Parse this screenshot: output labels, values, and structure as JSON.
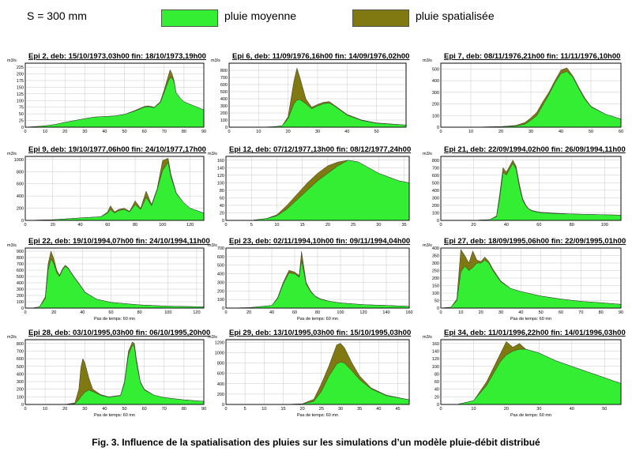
{
  "header": {
    "surface": "S = 300 mm",
    "legend": [
      {
        "label": "pluie moyenne",
        "color": "#33ee33"
      },
      {
        "label": "pluie spatialisée",
        "color": "#807810"
      }
    ]
  },
  "caption": "Fig. 3. Influence de la spatialisation des pluies sur les simulations d’un modèle pluie-débit distribué",
  "colors": {
    "moyenne": "#33ee33",
    "spatialisee": "#807810",
    "grid": "#c8c8c8"
  },
  "chart_data": [
    {
      "type": "area",
      "title": "Epi 2, deb: 15/10/1973,03h00 fin: 18/10/1973,19h00",
      "ylabel": "m3/s",
      "xlabel": "",
      "xlim": [
        0,
        90
      ],
      "ylim": [
        0,
        240
      ],
      "xticks": [
        0,
        10,
        20,
        30,
        40,
        50,
        60,
        70,
        80,
        90
      ],
      "yticks": [
        0,
        25,
        50,
        75,
        100,
        125,
        150,
        175,
        200,
        225
      ],
      "x": [
        0,
        5,
        10,
        15,
        20,
        25,
        30,
        35,
        40,
        45,
        50,
        55,
        60,
        62,
        65,
        68,
        70,
        72,
        73,
        74,
        75,
        76,
        78,
        80,
        85,
        90
      ],
      "series": [
        {
          "name": "pluie spatialisée",
          "values": [
            0,
            2,
            5,
            10,
            18,
            25,
            32,
            38,
            40,
            42,
            48,
            62,
            78,
            80,
            75,
            95,
            140,
            190,
            215,
            200,
            175,
            130,
            110,
            95,
            80,
            65
          ]
        },
        {
          "name": "pluie moyenne",
          "values": [
            0,
            2,
            5,
            10,
            18,
            25,
            32,
            38,
            40,
            42,
            48,
            60,
            75,
            77,
            73,
            92,
            130,
            170,
            185,
            185,
            170,
            130,
            110,
            95,
            80,
            65
          ]
        }
      ]
    },
    {
      "type": "area",
      "title": "Epi 6, deb: 11/09/1976,16h00 fin: 14/09/1976,02h00",
      "ylabel": "m3/s",
      "xlabel": "",
      "xlim": [
        0,
        60
      ],
      "ylim": [
        0,
        900
      ],
      "xticks": [
        0,
        10,
        20,
        30,
        40,
        50
      ],
      "yticks": [
        0,
        100,
        200,
        300,
        400,
        500,
        600,
        700,
        800
      ],
      "x": [
        0,
        10,
        15,
        18,
        20,
        22,
        23,
        24,
        26,
        28,
        30,
        32,
        34,
        36,
        40,
        45,
        50,
        60
      ],
      "series": [
        {
          "name": "pluie spatialisée",
          "values": [
            0,
            0,
            5,
            20,
            150,
            650,
            830,
            700,
            400,
            280,
            320,
            350,
            360,
            300,
            180,
            100,
            60,
            30
          ]
        },
        {
          "name": "pluie moyenne",
          "values": [
            0,
            0,
            5,
            20,
            120,
            330,
            380,
            390,
            330,
            260,
            300,
            330,
            340,
            290,
            170,
            95,
            55,
            30
          ]
        }
      ]
    },
    {
      "type": "area",
      "title": "Epi 7, deb: 08/11/1976,21h00 fin: 11/11/1976,10h00",
      "ylabel": "m3/s",
      "xlabel": "",
      "xlim": [
        0,
        60
      ],
      "ylim": [
        0,
        550
      ],
      "xticks": [
        0,
        10,
        20,
        30,
        40,
        50,
        60
      ],
      "yticks": [
        0,
        100,
        200,
        300,
        400,
        500
      ],
      "x": [
        0,
        10,
        20,
        25,
        28,
        30,
        32,
        34,
        36,
        38,
        40,
        42,
        44,
        46,
        48,
        50,
        55,
        60
      ],
      "series": [
        {
          "name": "pluie spatialisée",
          "values": [
            0,
            0,
            5,
            15,
            40,
            80,
            130,
            220,
            300,
            400,
            490,
            510,
            440,
            340,
            250,
            180,
            110,
            70
          ]
        },
        {
          "name": "pluie moyenne",
          "values": [
            0,
            0,
            5,
            10,
            25,
            60,
            100,
            190,
            280,
            380,
            460,
            480,
            430,
            330,
            240,
            175,
            110,
            70
          ]
        }
      ]
    },
    {
      "type": "area",
      "title": "Epi 9, deb: 19/10/1977,06h00 fin: 24/10/1977,17h00",
      "ylabel": "m3/s",
      "xlabel": "",
      "xlim": [
        0,
        130
      ],
      "ylim": [
        0,
        1050
      ],
      "xticks": [
        0,
        20,
        40,
        60,
        80,
        100,
        120
      ],
      "yticks": [
        0,
        200,
        400,
        600,
        800,
        1000
      ],
      "x": [
        0,
        20,
        40,
        55,
        60,
        62,
        65,
        68,
        72,
        76,
        80,
        84,
        88,
        92,
        96,
        100,
        104,
        106,
        110,
        115,
        120,
        130
      ],
      "series": [
        {
          "name": "pluie spatialisée",
          "values": [
            0,
            10,
            40,
            60,
            140,
            240,
            140,
            180,
            200,
            150,
            320,
            200,
            480,
            260,
            520,
            980,
            1020,
            760,
            450,
            300,
            200,
            120
          ]
        },
        {
          "name": "pluie moyenne",
          "values": [
            0,
            10,
            40,
            60,
            120,
            180,
            120,
            160,
            180,
            140,
            260,
            180,
            380,
            240,
            500,
            820,
            950,
            720,
            440,
            300,
            200,
            120
          ]
        }
      ]
    },
    {
      "type": "area",
      "title": "Epi 12, deb: 07/12/1977,13h00 fin: 08/12/1977,24h00",
      "ylabel": "m3/s",
      "xlabel": "",
      "xlim": [
        0,
        36
      ],
      "ylim": [
        0,
        170
      ],
      "xticks": [
        0,
        5,
        10,
        15,
        20,
        25,
        30,
        35
      ],
      "yticks": [
        0,
        20,
        40,
        60,
        80,
        100,
        120,
        140,
        160
      ],
      "x": [
        0,
        5,
        8,
        10,
        12,
        14,
        16,
        18,
        20,
        22,
        24,
        26,
        28,
        30,
        32,
        34,
        36
      ],
      "series": [
        {
          "name": "pluie spatialisée",
          "values": [
            0,
            0,
            5,
            15,
            40,
            70,
            100,
            125,
            145,
            155,
            160,
            155,
            140,
            125,
            115,
            105,
            100
          ]
        },
        {
          "name": "pluie moyenne",
          "values": [
            0,
            0,
            5,
            12,
            30,
            55,
            80,
            105,
            125,
            145,
            160,
            155,
            140,
            125,
            115,
            105,
            100
          ]
        }
      ]
    },
    {
      "type": "area",
      "title": "Epi 21, deb: 22/09/1994,02h00 fin: 26/09/1994,11h00",
      "ylabel": "m3/s",
      "xlabel": "",
      "xlim": [
        0,
        110
      ],
      "ylim": [
        0,
        850
      ],
      "xticks": [
        0,
        20,
        40,
        60,
        80,
        100
      ],
      "yticks": [
        0,
        100,
        200,
        300,
        400,
        500,
        600,
        700,
        800
      ],
      "x": [
        0,
        20,
        30,
        34,
        36,
        38,
        40,
        42,
        44,
        46,
        48,
        50,
        52,
        54,
        56,
        60,
        70,
        80,
        90,
        100,
        110
      ],
      "series": [
        {
          "name": "pluie spatialisée",
          "values": [
            0,
            0,
            10,
            60,
            350,
            700,
            640,
            720,
            800,
            720,
            480,
            290,
            200,
            150,
            130,
            110,
            95,
            85,
            80,
            75,
            70
          ]
        },
        {
          "name": "pluie moyenne",
          "values": [
            0,
            0,
            10,
            50,
            300,
            640,
            600,
            680,
            760,
            680,
            440,
            270,
            190,
            145,
            125,
            105,
            90,
            85,
            80,
            75,
            70
          ]
        }
      ]
    },
    {
      "type": "area",
      "title": "Epi 22, deb: 19/10/1994,07h00 fin: 24/10/1994,11h00",
      "ylabel": "m3/s",
      "xlabel": "Pas de temps: 60 mn",
      "xlim": [
        0,
        125
      ],
      "ylim": [
        0,
        950
      ],
      "xticks": [
        0,
        20,
        40,
        60,
        80,
        100,
        120
      ],
      "yticks": [
        0,
        100,
        200,
        300,
        400,
        500,
        600,
        700,
        800,
        900
      ],
      "x": [
        0,
        5,
        10,
        14,
        16,
        18,
        20,
        22,
        24,
        26,
        28,
        30,
        34,
        38,
        42,
        50,
        60,
        80,
        100,
        125
      ],
      "series": [
        {
          "name": "pluie spatialisée",
          "values": [
            0,
            0,
            20,
            180,
            700,
            900,
            780,
            600,
            520,
            620,
            680,
            640,
            500,
            380,
            250,
            140,
            90,
            50,
            30,
            20
          ]
        },
        {
          "name": "pluie moyenne",
          "values": [
            0,
            0,
            20,
            150,
            600,
            780,
            700,
            560,
            500,
            600,
            660,
            630,
            490,
            370,
            245,
            140,
            90,
            50,
            30,
            20
          ]
        }
      ]
    },
    {
      "type": "area",
      "title": "Epi 23, deb: 02/11/1994,10h00 fin: 09/11/1994,04h00",
      "ylabel": "m3/s",
      "xlabel": "Pas de temps: 60 mn",
      "xlim": [
        0,
        160
      ],
      "ylim": [
        0,
        700
      ],
      "xticks": [
        0,
        20,
        40,
        60,
        80,
        100,
        120,
        140,
        160
      ],
      "yticks": [
        0,
        100,
        200,
        300,
        400,
        500,
        600,
        700
      ],
      "x": [
        0,
        20,
        40,
        45,
        50,
        55,
        60,
        64,
        66,
        68,
        70,
        74,
        78,
        82,
        90,
        100,
        120,
        140,
        160
      ],
      "series": [
        {
          "name": "pluie spatialisée",
          "values": [
            0,
            5,
            30,
            120,
            300,
            440,
            420,
            380,
            660,
            480,
            300,
            200,
            140,
            110,
            80,
            60,
            40,
            30,
            20
          ]
        },
        {
          "name": "pluie moyenne",
          "values": [
            0,
            5,
            30,
            110,
            280,
            410,
            400,
            360,
            560,
            420,
            280,
            190,
            135,
            105,
            80,
            60,
            40,
            30,
            20
          ]
        }
      ]
    },
    {
      "type": "area",
      "title": "Epi 27, deb: 18/09/1995,06h00 fin: 22/09/1995,01h00",
      "ylabel": "m3/s",
      "xlabel": "Pas de temps: 60 mn",
      "xlim": [
        0,
        90
      ],
      "ylim": [
        0,
        400
      ],
      "xticks": [
        0,
        10,
        20,
        30,
        40,
        50,
        60,
        70,
        80,
        90
      ],
      "yticks": [
        0,
        50,
        100,
        150,
        200,
        250,
        300,
        350,
        400
      ],
      "x": [
        0,
        5,
        8,
        10,
        12,
        14,
        16,
        18,
        20,
        22,
        24,
        26,
        30,
        35,
        40,
        50,
        60,
        70,
        80,
        90
      ],
      "series": [
        {
          "name": "pluie spatialisée",
          "values": [
            0,
            5,
            60,
            390,
            350,
            300,
            380,
            320,
            310,
            340,
            310,
            260,
            180,
            130,
            110,
            80,
            60,
            45,
            35,
            25
          ]
        },
        {
          "name": "pluie moyenne",
          "values": [
            0,
            5,
            50,
            240,
            280,
            250,
            270,
            300,
            300,
            320,
            300,
            250,
            175,
            130,
            110,
            80,
            60,
            45,
            35,
            25
          ]
        }
      ]
    },
    {
      "type": "area",
      "title": "Epi 28, deb: 03/10/1995,03h00 fin: 06/10/1995,20h00",
      "ylabel": "m3/s",
      "xlabel": "Pas de temps: 60 mn",
      "xlim": [
        0,
        90
      ],
      "ylim": [
        0,
        850
      ],
      "xticks": [
        0,
        10,
        20,
        30,
        40,
        50,
        60,
        70,
        80,
        90
      ],
      "yticks": [
        0,
        100,
        200,
        300,
        400,
        500,
        600,
        700,
        800
      ],
      "x": [
        0,
        20,
        25,
        27,
        28,
        29,
        30,
        32,
        34,
        38,
        42,
        48,
        50,
        52,
        54,
        55,
        56,
        58,
        60,
        65,
        70,
        80,
        90
      ],
      "series": [
        {
          "name": "pluie spatialisée",
          "values": [
            0,
            0,
            20,
            200,
            480,
            600,
            550,
            350,
            200,
            130,
            100,
            120,
            300,
            700,
            820,
            800,
            600,
            300,
            200,
            120,
            90,
            60,
            40
          ]
        },
        {
          "name": "pluie moyenne",
          "values": [
            0,
            0,
            10,
            60,
            100,
            130,
            160,
            190,
            170,
            120,
            95,
            115,
            280,
            650,
            780,
            760,
            560,
            290,
            190,
            120,
            90,
            60,
            40
          ]
        }
      ]
    },
    {
      "type": "area",
      "title": "Epi 29, deb: 13/10/1995,03h00 fin: 15/10/1995,03h00",
      "ylabel": "m3/s",
      "xlabel": "Pas de temps: 60 mn",
      "xlim": [
        0,
        48
      ],
      "ylim": [
        0,
        1250
      ],
      "xticks": [
        0,
        5,
        10,
        15,
        20,
        25,
        30,
        35,
        40,
        45
      ],
      "yticks": [
        0,
        200,
        400,
        600,
        800,
        1000,
        1200
      ],
      "x": [
        0,
        15,
        20,
        23,
        25,
        27,
        29,
        30,
        31,
        33,
        35,
        38,
        42,
        48
      ],
      "series": [
        {
          "name": "pluie spatialisée",
          "values": [
            0,
            0,
            10,
            100,
            400,
            750,
            1150,
            1180,
            1100,
            800,
            550,
            320,
            180,
            90
          ]
        },
        {
          "name": "pluie moyenne",
          "values": [
            0,
            0,
            10,
            60,
            250,
            550,
            780,
            820,
            800,
            650,
            480,
            300,
            170,
            90
          ]
        }
      ]
    },
    {
      "type": "area",
      "title": "Epi 34, deb: 11/01/1996,22h00 fin: 14/01/1996,03h00",
      "ylabel": "m3/s",
      "xlabel": "Pas de temps: 60 mn",
      "xlim": [
        0,
        55
      ],
      "ylim": [
        0,
        170
      ],
      "xticks": [
        0,
        10,
        20,
        30,
        40,
        50
      ],
      "yticks": [
        0,
        20,
        40,
        60,
        80,
        100,
        120,
        140,
        160
      ],
      "x": [
        0,
        5,
        10,
        14,
        18,
        20,
        22,
        24,
        26,
        28,
        30,
        35,
        40,
        45,
        50,
        55
      ],
      "series": [
        {
          "name": "pluie spatialisée",
          "values": [
            0,
            0,
            10,
            60,
            130,
            165,
            150,
            160,
            145,
            140,
            135,
            115,
            100,
            85,
            70,
            55
          ]
        },
        {
          "name": "pluie moyenne",
          "values": [
            0,
            0,
            10,
            50,
            110,
            130,
            140,
            145,
            145,
            140,
            135,
            115,
            100,
            85,
            70,
            55
          ]
        }
      ]
    }
  ]
}
